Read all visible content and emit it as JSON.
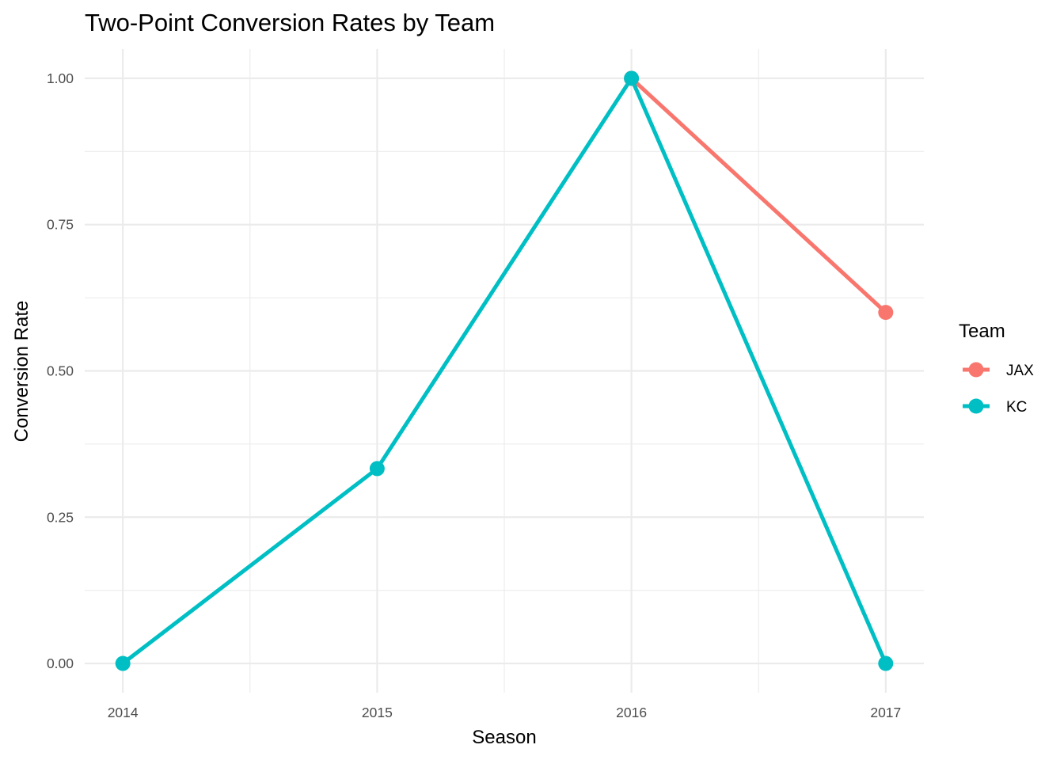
{
  "chart_data": {
    "type": "line",
    "title": "Two-Point Conversion Rates by Team",
    "xlabel": "Season",
    "ylabel": "Conversion Rate",
    "x_ticks": [
      "2014",
      "2015",
      "2016",
      "2017"
    ],
    "y_ticks": [
      "0.00",
      "0.25",
      "0.50",
      "0.75",
      "1.00"
    ],
    "xlim": [
      2013.85,
      2017.15
    ],
    "ylim": [
      -0.05,
      1.05
    ],
    "grid": true,
    "legend": {
      "title": "Team",
      "placement": "right"
    },
    "series": [
      {
        "name": "JAX",
        "color": "#F8766D",
        "x": [
          2016,
          2017
        ],
        "y": [
          1.0,
          0.6
        ]
      },
      {
        "name": "KC",
        "color": "#00BFC4",
        "x": [
          2014,
          2015,
          2016,
          2017
        ],
        "y": [
          0.0,
          0.333,
          1.0,
          0.0
        ]
      }
    ]
  }
}
